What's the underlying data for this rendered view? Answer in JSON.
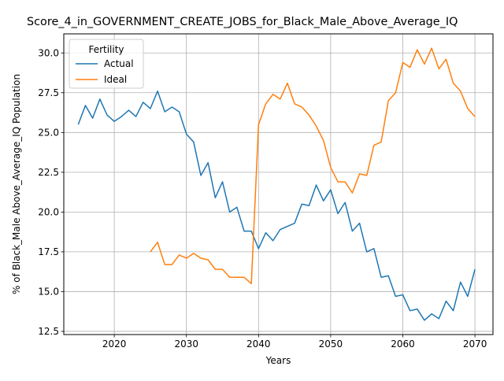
{
  "chart_data": {
    "type": "line",
    "title": "Score_4_in_GOVERNMENT_CREATE_JOBS_for_Black_Male_Above_Average_IQ",
    "xlabel": "Years",
    "ylabel": "% of Black_Male Above_Average_IQ Population",
    "xlim": [
      2013,
      2072.5
    ],
    "ylim": [
      12.3,
      31.2
    ],
    "xticks": [
      2020,
      2030,
      2040,
      2050,
      2060,
      2070
    ],
    "yticks": [
      12.5,
      15.0,
      17.5,
      20.0,
      22.5,
      25.0,
      27.5,
      30.0
    ],
    "ytick_labels": [
      "12.5",
      "15.0",
      "17.5",
      "20.0",
      "22.5",
      "25.0",
      "27.5",
      "30.0"
    ],
    "grid": true,
    "legend": {
      "title": "Fertility",
      "placement": "upper-left"
    },
    "series": [
      {
        "name": "Actual",
        "color": "#1f77b4",
        "x": [
          2015,
          2016,
          2017,
          2018,
          2019,
          2020,
          2021,
          2022,
          2023,
          2024,
          2025,
          2026,
          2027,
          2028,
          2029,
          2030,
          2031,
          2032,
          2033,
          2034,
          2035,
          2036,
          2037,
          2038,
          2039,
          2040,
          2041,
          2042,
          2043,
          2044,
          2045,
          2046,
          2047,
          2048,
          2049,
          2050,
          2051,
          2052,
          2053,
          2054,
          2055,
          2056,
          2057,
          2058,
          2059,
          2060,
          2061,
          2062,
          2063,
          2064,
          2065,
          2066,
          2067,
          2068,
          2069,
          2070
        ],
        "values": [
          25.5,
          26.7,
          25.9,
          27.1,
          26.1,
          25.7,
          26.0,
          26.4,
          26.0,
          26.9,
          26.5,
          27.6,
          26.3,
          26.6,
          26.3,
          24.9,
          24.4,
          22.3,
          23.1,
          20.9,
          21.9,
          20.0,
          20.3,
          18.8,
          18.8,
          17.7,
          18.7,
          18.2,
          18.9,
          19.1,
          19.3,
          20.5,
          20.4,
          21.7,
          20.7,
          21.4,
          19.9,
          20.6,
          18.8,
          19.3,
          17.5,
          17.7,
          15.9,
          16.0,
          14.7,
          14.8,
          13.8,
          13.9,
          13.2,
          13.6,
          13.3,
          14.4,
          13.8,
          15.6,
          14.7,
          16.4
        ]
      },
      {
        "name": "Ideal",
        "color": "#ff7f0e",
        "x": [
          2025,
          2026,
          2027,
          2028,
          2029,
          2030,
          2031,
          2032,
          2033,
          2034,
          2035,
          2036,
          2037,
          2038,
          2039,
          2040,
          2041,
          2042,
          2043,
          2044,
          2045,
          2046,
          2047,
          2048,
          2049,
          2050,
          2051,
          2052,
          2053,
          2054,
          2055,
          2056,
          2057,
          2058,
          2059,
          2060,
          2061,
          2062,
          2063,
          2064,
          2065,
          2066,
          2067,
          2068,
          2069,
          2070
        ],
        "values": [
          17.5,
          18.1,
          16.7,
          16.7,
          17.3,
          17.1,
          17.4,
          17.1,
          17.0,
          16.4,
          16.4,
          15.9,
          15.9,
          15.9,
          15.5,
          25.5,
          26.8,
          27.4,
          27.1,
          28.1,
          26.8,
          26.6,
          26.1,
          25.4,
          24.5,
          22.8,
          21.9,
          21.9,
          21.2,
          22.4,
          22.3,
          24.2,
          24.4,
          27.0,
          27.5,
          29.4,
          29.1,
          30.2,
          29.3,
          30.3,
          29.0,
          29.6,
          28.1,
          27.6,
          26.5,
          26.0
        ]
      }
    ]
  }
}
